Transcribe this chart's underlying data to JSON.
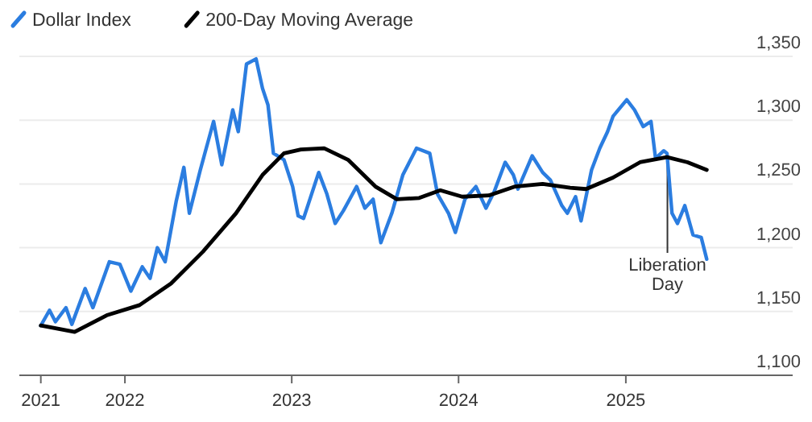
{
  "chart_data": {
    "type": "line",
    "legend": "top left",
    "grid": "y",
    "line_style": "solid",
    "marker": "none",
    "xlim": [
      "2021-05-15",
      "2026-01-01"
    ],
    "ylim": [
      1100,
      1350
    ],
    "xticks": [
      {
        "value": "2021-07-01",
        "label": "2021"
      },
      {
        "value": "2022-01-01",
        "label": "2022"
      },
      {
        "value": "2023-01-01",
        "label": "2023"
      },
      {
        "value": "2024-01-01",
        "label": "2024"
      },
      {
        "value": "2025-01-01",
        "label": "2025"
      }
    ],
    "yticks": [
      {
        "value": 1100,
        "label": "1,100"
      },
      {
        "value": 1150,
        "label": "1,150"
      },
      {
        "value": 1200,
        "label": "1,200"
      },
      {
        "value": 1250,
        "label": "1,250"
      },
      {
        "value": 1300,
        "label": "1,300"
      },
      {
        "value": 1350,
        "label": "1,350"
      }
    ],
    "annotations": [
      {
        "text": "Liberation Day",
        "x": "2025-04-02",
        "y": 1265
      }
    ],
    "series": [
      {
        "name": "Dollar Index",
        "color": "#2b7de0",
        "x": [
          "2021-07-01",
          "2021-07-20",
          "2021-08-02",
          "2021-08-25",
          "2021-09-07",
          "2021-10-06",
          "2021-10-23",
          "2021-11-28",
          "2021-12-21",
          "2022-01-14",
          "2022-02-08",
          "2022-02-25",
          "2022-03-13",
          "2022-03-30",
          "2022-04-23",
          "2022-05-10",
          "2022-05-22",
          "2022-06-15",
          "2022-07-14",
          "2022-08-01",
          "2022-08-25",
          "2022-09-06",
          "2022-09-24",
          "2022-10-15",
          "2022-10-29",
          "2022-11-10",
          "2022-11-22",
          "2022-12-15",
          "2023-01-03",
          "2023-01-15",
          "2023-01-27",
          "2023-03-01",
          "2023-03-19",
          "2023-04-06",
          "2023-04-24",
          "2023-05-23",
          "2023-06-10",
          "2023-06-28",
          "2023-07-15",
          "2023-08-08",
          "2023-09-01",
          "2023-10-01",
          "2023-10-30",
          "2023-11-16",
          "2023-12-10",
          "2023-12-25",
          "2024-01-15",
          "2024-02-08",
          "2024-03-01",
          "2024-03-19",
          "2024-04-12",
          "2024-04-30",
          "2024-05-10",
          "2024-06-10",
          "2024-07-03",
          "2024-07-20",
          "2024-08-14",
          "2024-08-26",
          "2024-09-13",
          "2024-09-25",
          "2024-10-18",
          "2024-11-05",
          "2024-11-22",
          "2024-12-04",
          "2025-01-03",
          "2025-01-20",
          "2025-02-08",
          "2025-02-25",
          "2025-03-07",
          "2025-03-25",
          "2025-04-01",
          "2025-04-12",
          "2025-04-24",
          "2025-05-10",
          "2025-05-28",
          "2025-06-15",
          "2025-06-27"
        ],
        "values": [
          1139,
          1151,
          1142,
          1153,
          1140,
          1168,
          1153,
          1189,
          1187,
          1166,
          1185,
          1176,
          1200,
          1189,
          1236,
          1263,
          1227,
          1261,
          1299,
          1265,
          1308,
          1291,
          1344,
          1348,
          1325,
          1312,
          1274,
          1269,
          1248,
          1225,
          1223,
          1259,
          1242,
          1219,
          1229,
          1248,
          1231,
          1238,
          1204,
          1227,
          1257,
          1278,
          1274,
          1242,
          1227,
          1212,
          1238,
          1248,
          1231,
          1244,
          1267,
          1257,
          1246,
          1272,
          1259,
          1253,
          1233,
          1227,
          1240,
          1221,
          1261,
          1278,
          1291,
          1303,
          1316,
          1308,
          1295,
          1299,
          1270,
          1276,
          1274,
          1227,
          1219,
          1233,
          1210,
          1208,
          1191
        ]
      },
      {
        "name": "200-Day Moving Average",
        "color": "#000000",
        "x": [
          "2021-07-01",
          "2021-09-13",
          "2021-11-22",
          "2022-02-02",
          "2022-04-12",
          "2022-06-21",
          "2022-09-01",
          "2022-10-29",
          "2022-12-15",
          "2023-01-21",
          "2023-03-13",
          "2023-05-04",
          "2023-07-03",
          "2023-08-19",
          "2023-10-07",
          "2023-11-22",
          "2024-01-09",
          "2024-03-07",
          "2024-05-04",
          "2024-07-03",
          "2024-09-01",
          "2024-10-06",
          "2024-12-04",
          "2025-02-01",
          "2025-04-01",
          "2025-05-16",
          "2025-06-27"
        ],
        "values": [
          1139,
          1134,
          1147,
          1155,
          1172,
          1197,
          1227,
          1257,
          1274,
          1277,
          1278,
          1269,
          1248,
          1238,
          1239,
          1245,
          1240,
          1241,
          1248,
          1250,
          1247,
          1246,
          1255,
          1267,
          1271,
          1267,
          1261
        ]
      }
    ]
  }
}
